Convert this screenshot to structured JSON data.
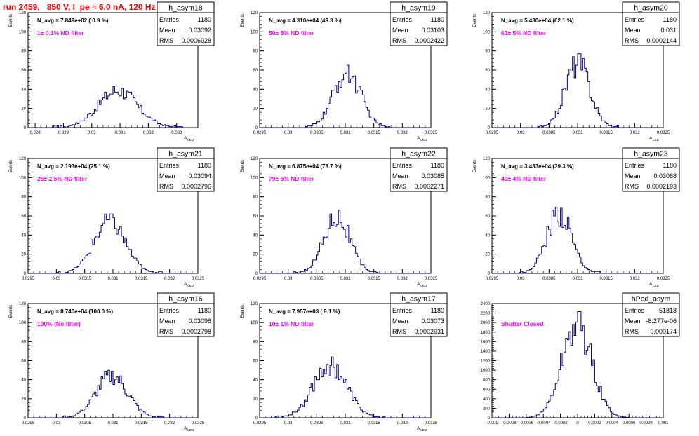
{
  "title": "run 2459,   850 V, I_pe ≈ 6.0 nA, 120 Hz",
  "colors": {
    "hist": "#000080",
    "annotation": "#ff00ff",
    "title": "#ff0000",
    "frame": "#000000"
  },
  "chart_data": [
    {
      "type": "histogram",
      "name": "h_asym18",
      "stats": {
        "entries": "1180",
        "mean": "0.03092",
        "rms": "0.0006928"
      },
      "navg": "N_avg = 7.849e+02 ( 0.9 %)",
      "filter": "1± 0.1% ND filter",
      "xlabel": "A_LED",
      "ylabel": "Events",
      "xlim": [
        0.02775,
        0.03375
      ],
      "ylim": [
        0,
        120
      ],
      "xticks": [
        0.028,
        0.029,
        0.03,
        0.031,
        0.032,
        0.033
      ],
      "xtick_labels": [
        "0.028",
        "0.029",
        "0.03",
        "0.031",
        "0.032",
        "0.033"
      ],
      "yticks": [
        0,
        20,
        40,
        60,
        80,
        100,
        120
      ],
      "mean": 0.03092,
      "sigma": 0.00069,
      "peak": 44
    },
    {
      "type": "histogram",
      "name": "h_asym19",
      "stats": {
        "entries": "1180",
        "mean": "0.03103",
        "rms": "0.0002422"
      },
      "navg": "N_avg = 4.310e+04 (49.3 %)",
      "filter": "50± 5% ND filter",
      "xlabel": "A_LED",
      "ylabel": "Events",
      "xlim": [
        0.0295,
        0.0325
      ],
      "ylim": [
        0,
        120
      ],
      "xticks": [
        0.0295,
        0.03,
        0.0305,
        0.031,
        0.0315,
        0.032,
        0.0325
      ],
      "xtick_labels": [
        "0.0295",
        "0.03",
        "0.0305",
        "0.031",
        "0.0315",
        "0.032",
        "0.0325"
      ],
      "yticks": [
        0,
        20,
        40,
        60,
        80,
        100,
        120
      ],
      "mean": 0.03103,
      "sigma": 0.00024,
      "peak": 65
    },
    {
      "type": "histogram",
      "name": "h_asym20",
      "stats": {
        "entries": "1180",
        "mean": "0.031",
        "rms": "0.0002144"
      },
      "navg": "N_avg = 5.430e+04 (62.1 %)",
      "filter": "63± 5% ND filter",
      "xlabel": "A_LED",
      "ylabel": "Events",
      "xlim": [
        0.0295,
        0.0325
      ],
      "ylim": [
        0,
        120
      ],
      "xticks": [
        0.0295,
        0.03,
        0.0305,
        0.031,
        0.0315,
        0.032,
        0.0325
      ],
      "xtick_labels": [
        "0.0295",
        "0.03",
        "0.0305",
        "0.031",
        "0.0315",
        "0.032",
        "0.0325"
      ],
      "yticks": [
        0,
        20,
        40,
        60,
        80,
        100,
        120
      ],
      "mean": 0.031,
      "sigma": 0.000214,
      "peak": 77
    },
    {
      "type": "histogram",
      "name": "h_asym21",
      "stats": {
        "entries": "1180",
        "mean": "0.03094",
        "rms": "0.0002796"
      },
      "navg": "N_avg = 2.193e+04 (25.1 %)",
      "filter": "25± 2.5% ND filter",
      "xlabel": "A_LED",
      "ylabel": "Events",
      "xlim": [
        0.0295,
        0.0325
      ],
      "ylim": [
        0,
        120
      ],
      "xticks": [
        0.0295,
        0.03,
        0.0305,
        0.031,
        0.0315,
        0.032,
        0.0325
      ],
      "xtick_labels": [
        "0.0295",
        "0.03",
        "0.0305",
        "0.031",
        "0.0315",
        "0.032",
        "0.0325"
      ],
      "yticks": [
        0,
        20,
        40,
        60,
        80,
        100,
        120
      ],
      "mean": 0.03094,
      "sigma": 0.00028,
      "peak": 62
    },
    {
      "type": "histogram",
      "name": "h_asym22",
      "stats": {
        "entries": "1180",
        "mean": "0.03085",
        "rms": "0.0002271"
      },
      "navg": "N_avg = 6.875e+04 (78.7 %)",
      "filter": "79± 5% ND filter",
      "xlabel": "A_LED",
      "ylabel": "Events",
      "xlim": [
        0.0295,
        0.0325
      ],
      "ylim": [
        0,
        120
      ],
      "xticks": [
        0.0295,
        0.03,
        0.0305,
        0.031,
        0.0315,
        0.032,
        0.0325
      ],
      "xtick_labels": [
        "0.0295",
        "0.03",
        "0.0305",
        "0.031",
        "0.0315",
        "0.032",
        "0.0325"
      ],
      "yticks": [
        0,
        20,
        40,
        60,
        80,
        100,
        120
      ],
      "mean": 0.03085,
      "sigma": 0.000227,
      "peak": 68
    },
    {
      "type": "histogram",
      "name": "h_asym23",
      "stats": {
        "entries": "1180",
        "mean": "0.03068",
        "rms": "0.0002193"
      },
      "navg": "N_avg = 3.433e+04 (39.3 %)",
      "filter": "40± 4% ND filter",
      "xlabel": "A_LED",
      "ylabel": "Events",
      "xlim": [
        0.0295,
        0.0325
      ],
      "ylim": [
        0,
        120
      ],
      "xticks": [
        0.0295,
        0.03,
        0.0305,
        0.031,
        0.0315,
        0.032,
        0.0325
      ],
      "xtick_labels": [
        "0.0295",
        "0.03",
        "0.0305",
        "0.031",
        "0.0315",
        "0.032",
        "0.0325"
      ],
      "yticks": [
        0,
        20,
        40,
        60,
        80,
        100,
        120
      ],
      "mean": 0.03068,
      "sigma": 0.000219,
      "peak": 72
    },
    {
      "type": "histogram",
      "name": "h_asym16",
      "stats": {
        "entries": "1180",
        "mean": "0.03098",
        "rms": "0.0002798"
      },
      "navg": "N_avg = 8.740e+04 (100.0 %)",
      "filter": "100% (No filter)",
      "xlabel": "A_LED",
      "ylabel": "Events",
      "xlim": [
        0.0295,
        0.0325
      ],
      "ylim": [
        0,
        120
      ],
      "xticks": [
        0.0295,
        0.03,
        0.0305,
        0.031,
        0.0315,
        0.032,
        0.0325
      ],
      "xtick_labels": [
        "0.0295",
        "0.03",
        "0.0305",
        "0.031",
        "0.0315",
        "0.032",
        "0.0325"
      ],
      "yticks": [
        0,
        20,
        40,
        60,
        80,
        100,
        120
      ],
      "mean": 0.03098,
      "sigma": 0.00028,
      "peak": 50
    },
    {
      "type": "histogram",
      "name": "h_asym17",
      "stats": {
        "entries": "1180",
        "mean": "0.03073",
        "rms": "0.0002931"
      },
      "navg": "N_avg = 7.957e+03 ( 9.1 %)",
      "filter": "10± 1% ND filter",
      "xlabel": "A_LED",
      "ylabel": "Events",
      "xlim": [
        0.0295,
        0.0325
      ],
      "ylim": [
        0,
        120
      ],
      "xticks": [
        0.0295,
        0.03,
        0.0305,
        0.031,
        0.0315,
        0.032,
        0.0325
      ],
      "xtick_labels": [
        "0.0295",
        "0.03",
        "0.0305",
        "0.031",
        "0.0315",
        "0.032",
        "0.0325"
      ],
      "yticks": [
        0,
        20,
        40,
        60,
        80,
        100,
        120
      ],
      "mean": 0.03073,
      "sigma": 0.00029,
      "peak": 64
    },
    {
      "type": "histogram",
      "name": "hPed_asym",
      "stats": {
        "entries": "51818",
        "mean": "-8.277e-06",
        "rms": "0.000174"
      },
      "navg": "",
      "filter": "Shutter Closed",
      "xlabel": "",
      "ylabel": "",
      "xlim": [
        -0.001,
        0.001
      ],
      "ylim": [
        0,
        2400
      ],
      "xticks": [
        -0.001,
        -0.0008,
        -0.0006,
        -0.0004,
        -0.0002,
        0,
        0.0002,
        0.0004,
        0.0006,
        0.0008,
        0.001
      ],
      "xtick_labels": [
        "-0.001",
        "-0.0008",
        "-0.0006",
        "-0.0004",
        "-0.0002",
        "0",
        "0.0002",
        "0.0004",
        "0.0006",
        "0.0008",
        "0.001"
      ],
      "yticks": [
        0,
        200,
        400,
        600,
        800,
        1000,
        1200,
        1400,
        1600,
        1800,
        2000,
        2200,
        2400
      ],
      "mean": -8e-06,
      "sigma": 0.000174,
      "peak": 2230
    }
  ]
}
